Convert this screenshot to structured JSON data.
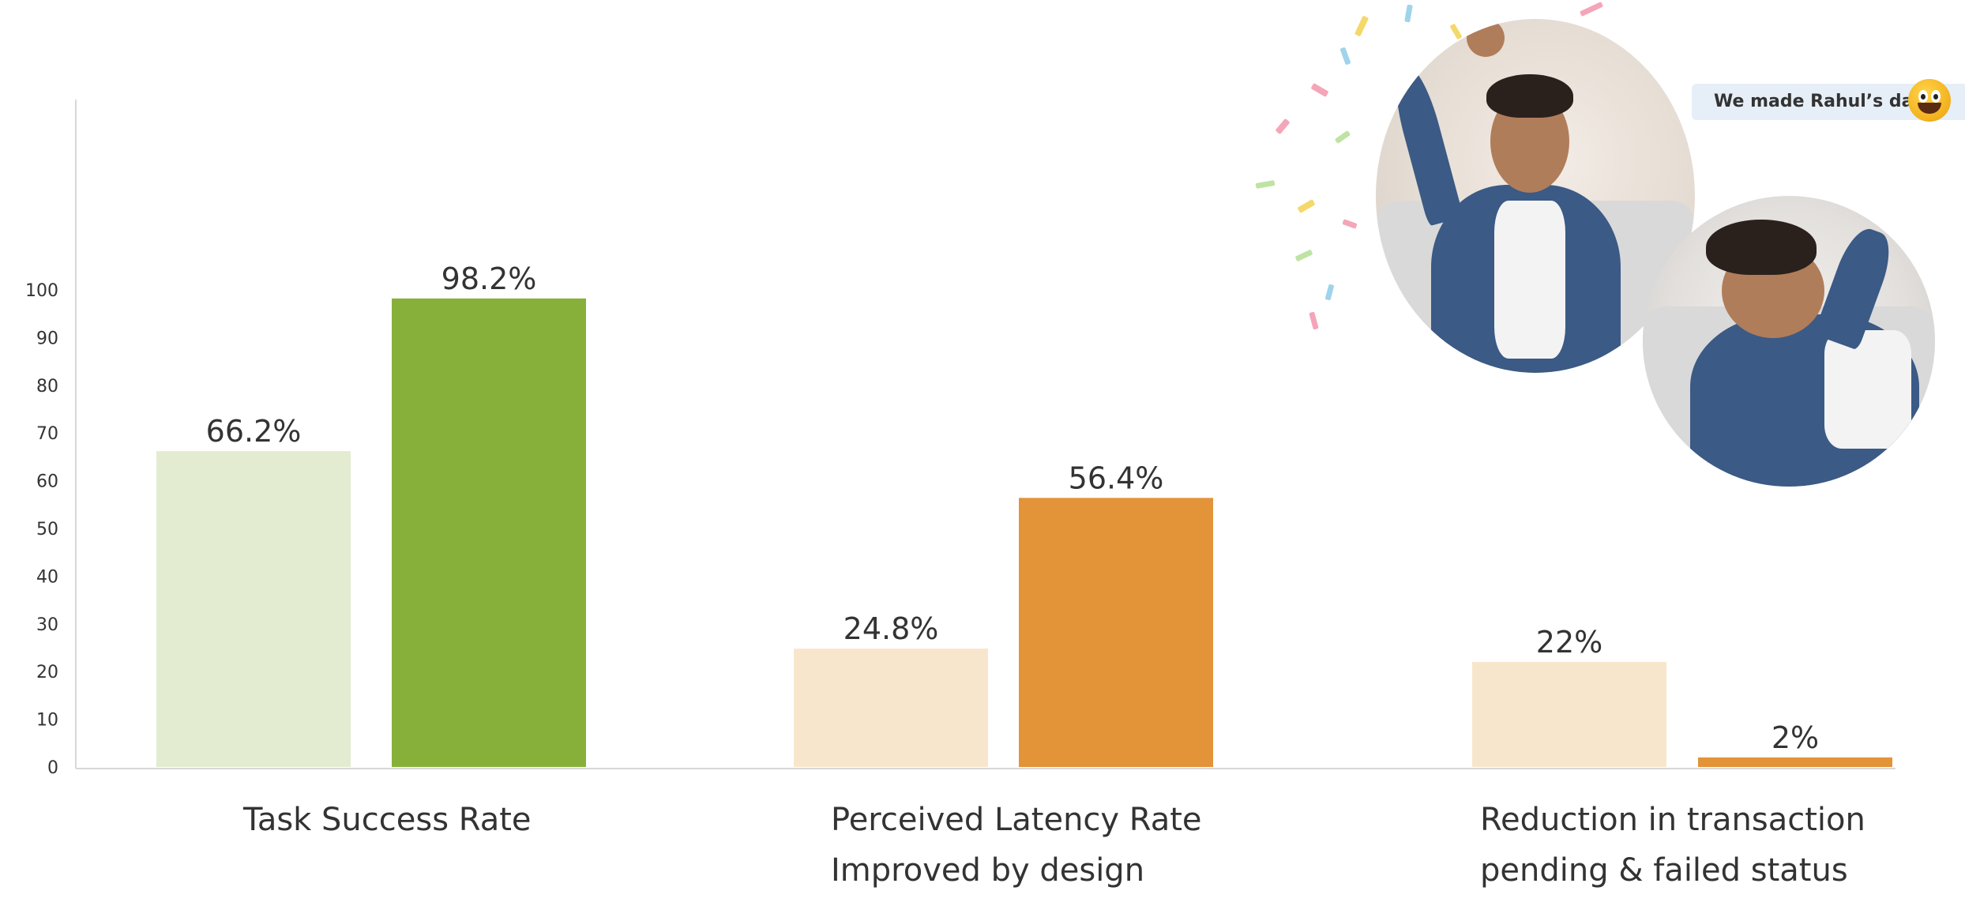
{
  "chart_data": {
    "type": "bar",
    "categories": [
      [
        "Task Success Rate"
      ],
      [
        "Perceived Latency Rate",
        "Improved by design"
      ],
      [
        "Reduction in transaction",
        "pending & failed status"
      ]
    ],
    "series": [
      {
        "values": [
          66.2,
          24.8,
          22
        ]
      },
      {
        "values": [
          98.2,
          56.4,
          2
        ]
      }
    ],
    "value_labels": [
      [
        "66.2%",
        "24.8%",
        "22%"
      ],
      [
        "98.2%",
        "56.4%",
        "2%"
      ]
    ],
    "bar_colors": [
      [
        "#e3ecd1",
        "#f8e6cc",
        "#f8e6cc"
      ],
      [
        "#87b03b",
        "#e39338",
        "#e39338"
      ]
    ],
    "ylim": [
      0,
      100
    ],
    "yticks": [
      0,
      10,
      20,
      30,
      40,
      50,
      60,
      70,
      80,
      90,
      100
    ],
    "grid": false,
    "title": "",
    "xlabel": "",
    "ylabel": ""
  },
  "callout": {
    "text": "We made Rahul’s day!",
    "emoji": "grinning-face-emoji"
  }
}
